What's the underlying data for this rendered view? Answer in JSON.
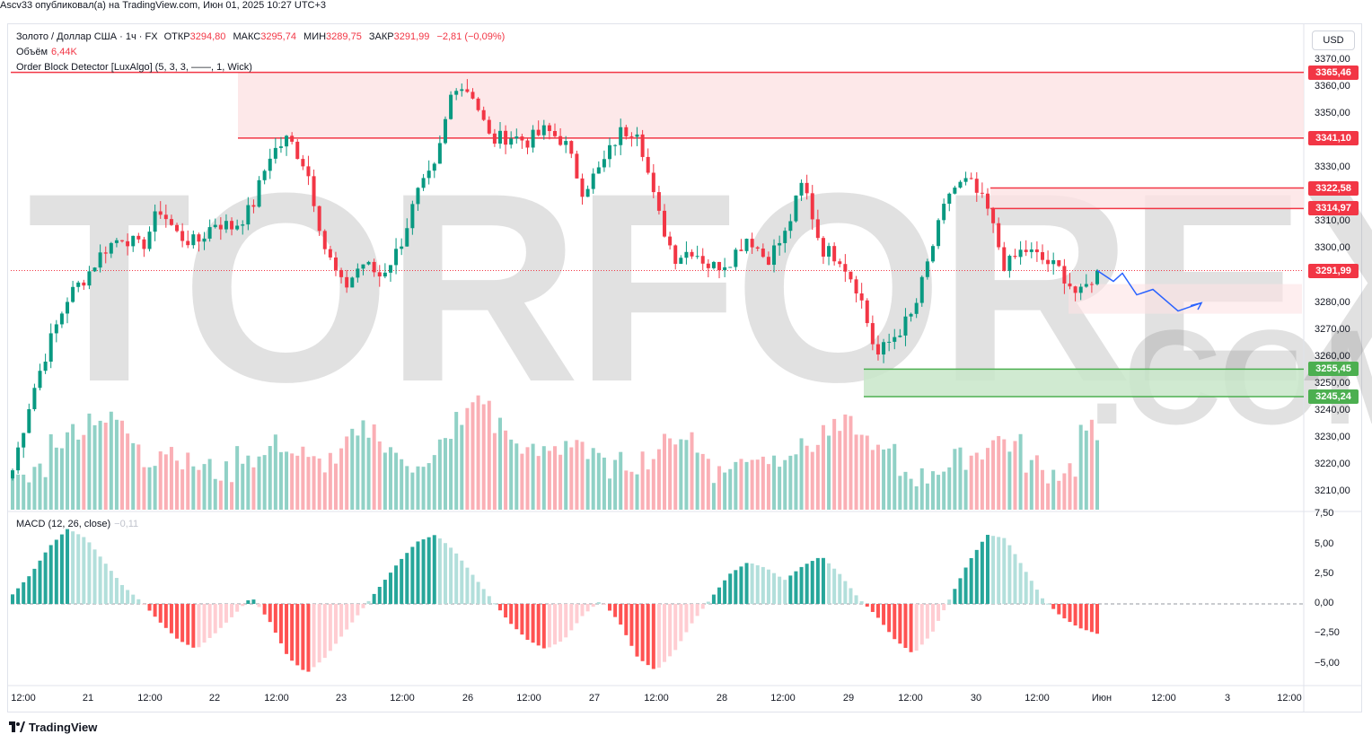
{
  "header": {
    "published_by": "Ascv33 опубликовал(а) на TradingView.com, Июн 01, 2025 10:27 UTC+3"
  },
  "symbol_line": {
    "symbol": "Золото / Доллар США · 1ч · FX",
    "open_label": "ОТКР",
    "open": "3294,80",
    "high_label": "МАКС",
    "high": "3295,74",
    "low_label": "МИН",
    "low": "3289,75",
    "close_label": "ЗАКР",
    "close": "3291,99",
    "change": "−2,81 (−0,09%)"
  },
  "volume_line": {
    "label": "Объём",
    "value": "6,44K"
  },
  "indicator_line": {
    "label": "Order Block Detector [LuxAlgo] (5, 3, 3, ——, 1, Wick)"
  },
  "macd_line": {
    "label": "MACD (12, 26, close)",
    "value": "−0,11"
  },
  "currency_button": "USD",
  "watermark": {
    "left": "TORFOREX",
    "right": ".COM"
  },
  "price_axis": {
    "labels": [
      "3370,00",
      "3360,00",
      "3350,00",
      "3330,00",
      "3310,00",
      "3300,00",
      "3280,00",
      "3270,00",
      "3260,00",
      "3250,00",
      "3240,00",
      "3230,00",
      "3220,00",
      "3210,00"
    ],
    "tags": [
      {
        "text": "3365,46",
        "color": "#f23645"
      },
      {
        "text": "3341,10",
        "color": "#f23645"
      },
      {
        "text": "3322,58",
        "color": "#f23645"
      },
      {
        "text": "3314,97",
        "color": "#f23645"
      },
      {
        "text": "3291,99",
        "color": "#f23645"
      },
      {
        "text": "3255,45",
        "color": "#4caf50"
      },
      {
        "text": "3245,24",
        "color": "#4caf50"
      }
    ]
  },
  "macd_axis": {
    "labels": [
      "7,50",
      "5,00",
      "2,50",
      "0,00",
      "−2,50",
      "−5,00"
    ]
  },
  "time_axis": {
    "labels": [
      "12:00",
      "21",
      "12:00",
      "22",
      "12:00",
      "23",
      "12:00",
      "26",
      "12:00",
      "27",
      "12:00",
      "28",
      "12:00",
      "29",
      "12:00",
      "30",
      "12:00",
      "Июн",
      "12:00",
      "3",
      "12:00"
    ]
  },
  "footer": {
    "brand": "TradingView"
  },
  "colors": {
    "up": "#089981",
    "down": "#f23645",
    "bear_zone": "#fde2e4",
    "bull_zone": "#c8e6c9",
    "forecast": "#2962ff"
  },
  "chart_data": {
    "type": "candlestick",
    "symbol": "Золото / Доллар США",
    "timeframe": "1ч",
    "last_close": 3291.99,
    "order_blocks": [
      {
        "kind": "bearish",
        "top": 3365.46,
        "bottom": 3341.1
      },
      {
        "kind": "bearish",
        "top": 3322.58,
        "bottom": 3314.97
      },
      {
        "kind": "bullish",
        "top": 3255.45,
        "bottom": 3245.24
      }
    ],
    "price_path": [
      3218,
      3245,
      3265,
      3282,
      3290,
      3300,
      3305,
      3300,
      3315,
      3305,
      3302,
      3310,
      3308,
      3315,
      3335,
      3341,
      3330,
      3300,
      3285,
      3295,
      3290,
      3300,
      3320,
      3330,
      3362,
      3358,
      3340,
      3342,
      3340,
      3344,
      3340,
      3322,
      3330,
      3343,
      3345,
      3315,
      3297,
      3300,
      3293,
      3296,
      3305,
      3296,
      3305,
      3325,
      3300,
      3297,
      3285,
      3260,
      3268,
      3276,
      3300,
      3322,
      3325,
      3315,
      3293,
      3300,
      3296,
      3292,
      3282,
      3292
    ],
    "forecast_path": [
      3292,
      3288,
      3291,
      3283,
      3285,
      3277,
      3280
    ],
    "volume": [
      12,
      18,
      30,
      35,
      40,
      38,
      30,
      22,
      26,
      20,
      18,
      16,
      24,
      22,
      28,
      24,
      20,
      22,
      30,
      34,
      26,
      18,
      22,
      28,
      40,
      46,
      36,
      28,
      24,
      26,
      30,
      22,
      18,
      20,
      22,
      28,
      32,
      24,
      16,
      20,
      24,
      22,
      26,
      28,
      34,
      36,
      30,
      24,
      16,
      14,
      18,
      22,
      24,
      30,
      28,
      20,
      16,
      18,
      34,
      26
    ],
    "macd_hist": [
      0.8,
      2.5,
      4.8,
      6.3,
      5.5,
      3.5,
      1.5,
      0.2,
      -1.5,
      -3.0,
      -3.8,
      -2.5,
      -1.0,
      0.6,
      -1.5,
      -4.5,
      -5.8,
      -4.5,
      -2.5,
      -0.5,
      1.5,
      3.5,
      5.2,
      5.8,
      4.5,
      2.5,
      0.5,
      -1.5,
      -3.0,
      -3.8,
      -3.0,
      -1.0,
      0.3,
      -1.5,
      -4.5,
      -5.6,
      -4.0,
      -1.5,
      0.5,
      2.5,
      3.5,
      3.0,
      2.0,
      3.2,
      4.0,
      2.5,
      0.5,
      -1.0,
      -3.0,
      -4.2,
      -2.5,
      0.5,
      3.5,
      5.8,
      5.5,
      3.0,
      0.5,
      -1.0,
      -2.0,
      -2.5
    ]
  }
}
